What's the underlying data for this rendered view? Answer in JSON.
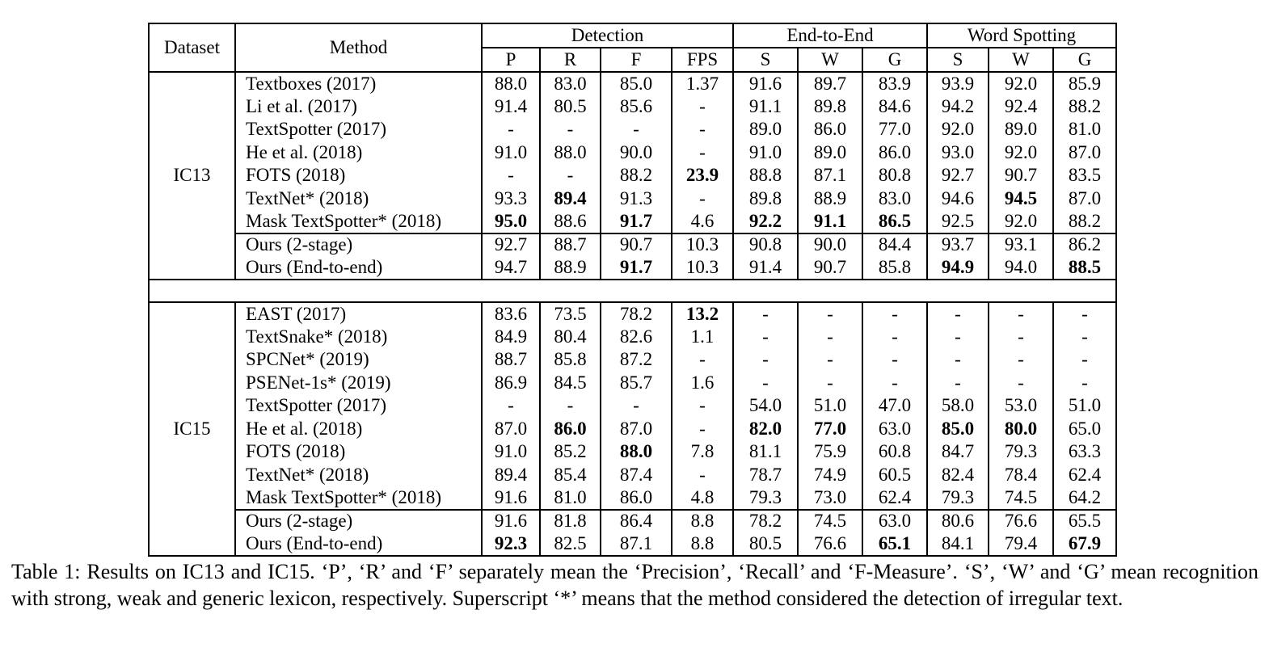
{
  "colors": {
    "background": "#ffffff",
    "text": "#000000",
    "border": "#000000"
  },
  "table": {
    "columns": {
      "dataset": "Dataset",
      "method": "Method",
      "groups": [
        {
          "label": "Detection",
          "cols": [
            "P",
            "R",
            "F",
            "FPS"
          ]
        },
        {
          "label": "End-to-End",
          "cols": [
            "S",
            "W",
            "G"
          ]
        },
        {
          "label": "Word Spotting",
          "cols": [
            "S",
            "W",
            "G"
          ]
        }
      ]
    },
    "sections": [
      {
        "dataset": "IC13",
        "rows": [
          {
            "method": "Textboxes (2017)",
            "values": [
              "88.0",
              "83.0",
              "85.0",
              "1.37",
              "91.6",
              "89.7",
              "83.9",
              "93.9",
              "92.0",
              "85.9"
            ],
            "bold": []
          },
          {
            "method": "Li et al. (2017)",
            "values": [
              "91.4",
              "80.5",
              "85.6",
              "-",
              "91.1",
              "89.8",
              "84.6",
              "94.2",
              "92.4",
              "88.2"
            ],
            "bold": []
          },
          {
            "method": "TextSpotter (2017)",
            "values": [
              "-",
              "-",
              "-",
              "-",
              "89.0",
              "86.0",
              "77.0",
              "92.0",
              "89.0",
              "81.0"
            ],
            "bold": []
          },
          {
            "method": "He et al. (2018)",
            "values": [
              "91.0",
              "88.0",
              "90.0",
              "-",
              "91.0",
              "89.0",
              "86.0",
              "93.0",
              "92.0",
              "87.0"
            ],
            "bold": []
          },
          {
            "method": "FOTS (2018)",
            "values": [
              "-",
              "-",
              "88.2",
              "23.9",
              "88.8",
              "87.1",
              "80.8",
              "92.7",
              "90.7",
              "83.5"
            ],
            "bold": [
              3
            ]
          },
          {
            "method": "TextNet* (2018)",
            "values": [
              "93.3",
              "89.4",
              "91.3",
              "-",
              "89.8",
              "88.9",
              "83.0",
              "94.6",
              "94.5",
              "87.0"
            ],
            "bold": [
              1,
              8
            ]
          },
          {
            "method": "Mask TextSpotter* (2018)",
            "values": [
              "95.0",
              "88.6",
              "91.7",
              "4.6",
              "92.2",
              "91.1",
              "86.5",
              "92.5",
              "92.0",
              "88.2"
            ],
            "bold": [
              0,
              2,
              4,
              5,
              6
            ]
          }
        ],
        "ours": [
          {
            "method": "Ours (2-stage)",
            "values": [
              "92.7",
              "88.7",
              "90.7",
              "10.3",
              "90.8",
              "90.0",
              "84.4",
              "93.7",
              "93.1",
              "86.2"
            ],
            "bold": []
          },
          {
            "method": "Ours (End-to-end)",
            "values": [
              "94.7",
              "88.9",
              "91.7",
              "10.3",
              "91.4",
              "90.7",
              "85.8",
              "94.9",
              "94.0",
              "88.5"
            ],
            "bold": [
              2,
              7,
              9
            ]
          }
        ]
      },
      {
        "dataset": "IC15",
        "rows": [
          {
            "method": "EAST (2017)",
            "values": [
              "83.6",
              "73.5",
              "78.2",
              "13.2",
              "-",
              "-",
              "-",
              "-",
              "-",
              "-"
            ],
            "bold": [
              3
            ]
          },
          {
            "method": "TextSnake* (2018)",
            "values": [
              "84.9",
              "80.4",
              "82.6",
              "1.1",
              "-",
              "-",
              "-",
              "-",
              "-",
              "-"
            ],
            "bold": []
          },
          {
            "method": "SPCNet* (2019)",
            "values": [
              "88.7",
              "85.8",
              "87.2",
              "-",
              "-",
              "-",
              "-",
              "-",
              "-",
              "-"
            ],
            "bold": []
          },
          {
            "method": "PSENet-1s* (2019)",
            "values": [
              "86.9",
              "84.5",
              "85.7",
              "1.6",
              "-",
              "-",
              "-",
              "-",
              "-",
              "-"
            ],
            "bold": []
          },
          {
            "method": "TextSpotter (2017)",
            "values": [
              "-",
              "-",
              "-",
              "-",
              "54.0",
              "51.0",
              "47.0",
              "58.0",
              "53.0",
              "51.0"
            ],
            "bold": []
          },
          {
            "method": "He et al. (2018)",
            "values": [
              "87.0",
              "86.0",
              "87.0",
              "-",
              "82.0",
              "77.0",
              "63.0",
              "85.0",
              "80.0",
              "65.0"
            ],
            "bold": [
              1,
              4,
              5,
              7,
              8
            ]
          },
          {
            "method": "FOTS (2018)",
            "values": [
              "91.0",
              "85.2",
              "88.0",
              "7.8",
              "81.1",
              "75.9",
              "60.8",
              "84.7",
              "79.3",
              "63.3"
            ],
            "bold": [
              2
            ]
          },
          {
            "method": "TextNet* (2018)",
            "values": [
              "89.4",
              "85.4",
              "87.4",
              "-",
              "78.7",
              "74.9",
              "60.5",
              "82.4",
              "78.4",
              "62.4"
            ],
            "bold": []
          },
          {
            "method": "Mask TextSpotter* (2018)",
            "values": [
              "91.6",
              "81.0",
              "86.0",
              "4.8",
              "79.3",
              "73.0",
              "62.4",
              "79.3",
              "74.5",
              "64.2"
            ],
            "bold": []
          }
        ],
        "ours": [
          {
            "method": "Ours (2-stage)",
            "values": [
              "91.6",
              "81.8",
              "86.4",
              "8.8",
              "78.2",
              "74.5",
              "63.0",
              "80.6",
              "76.6",
              "65.5"
            ],
            "bold": []
          },
          {
            "method": "Ours (End-to-end)",
            "values": [
              "92.3",
              "82.5",
              "87.1",
              "8.8",
              "80.5",
              "76.6",
              "65.1",
              "84.1",
              "79.4",
              "67.9"
            ],
            "bold": [
              0,
              6,
              9
            ]
          }
        ]
      }
    ]
  },
  "caption": {
    "text": "Table 1: Results on IC13 and IC15. ‘P’, ‘R’ and ‘F’ separately mean the ‘Precision’, ‘Recall’ and ‘F-Measure’. ‘S’, ‘W’ and ‘G’ mean recognition with strong, weak and generic lexicon, respectively. Superscript ‘*’ means that the method considered the detection of irregular text."
  }
}
